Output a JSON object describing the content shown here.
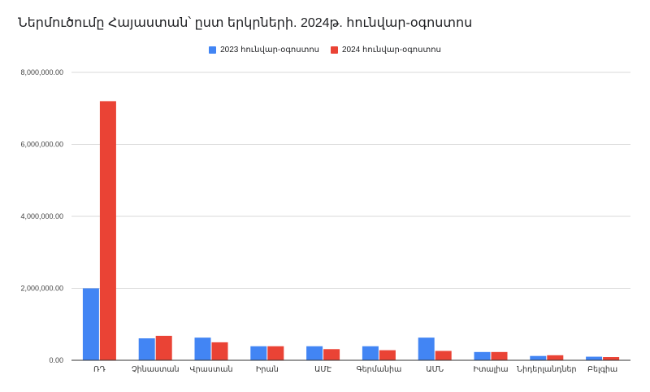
{
  "chart_data": {
    "type": "bar",
    "title": "Ներմուծումը Հայաստան՝ ըստ երկրների. 2024թ. հունվար-օգոստոս",
    "xlabel": "",
    "ylabel": "",
    "ylim": [
      0,
      8000000
    ],
    "yticks": [
      "0.00",
      "2,000,000.00",
      "4,000,000.00",
      "6,000,000.00",
      "8,000,000.00"
    ],
    "ytick_values": [
      0,
      2000000,
      4000000,
      6000000,
      8000000
    ],
    "grid": true,
    "legend_position": "top",
    "categories": [
      "ՌԴ",
      "Չինաստան",
      "Վրաստան",
      "Իրան",
      "ԱՄԷ",
      "Գերմանիա",
      "ԱՄՆ",
      "Իտալիա",
      "Նիդերլանդներ",
      "Բելգիա"
    ],
    "series": [
      {
        "name": "2023 հունվար-օգոստոս",
        "color": "#4285f4",
        "values": [
          2000000,
          610000,
          630000,
          390000,
          390000,
          390000,
          630000,
          230000,
          120000,
          100000
        ]
      },
      {
        "name": "2024 հունվար-օգոստոս",
        "color": "#ea4335",
        "values": [
          7200000,
          680000,
          500000,
          390000,
          310000,
          280000,
          260000,
          230000,
          140000,
          90000
        ]
      }
    ]
  }
}
